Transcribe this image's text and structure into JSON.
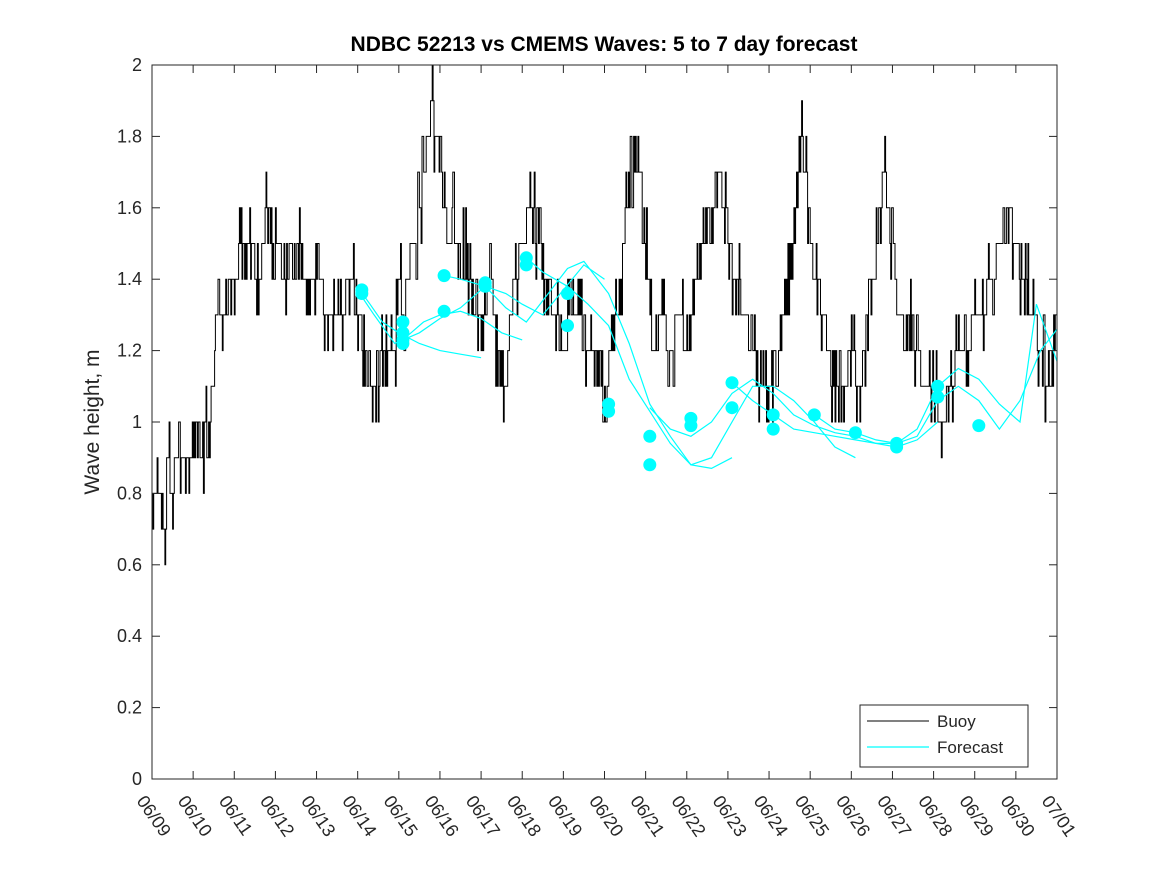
{
  "chart_data": {
    "type": "line",
    "title": "NDBC 52213 vs CMEMS Waves: 5 to 7 day forecast",
    "xlabel": "",
    "ylabel": "Wave height, m",
    "x_tick_labels": [
      "06/09",
      "06/10",
      "06/11",
      "06/12",
      "06/13",
      "06/14",
      "06/15",
      "06/16",
      "06/17",
      "06/18",
      "06/19",
      "06/20",
      "06/21",
      "06/22",
      "06/23",
      "06/24",
      "06/25",
      "06/26",
      "06/27",
      "06/28",
      "06/29",
      "06/30",
      "07/01"
    ],
    "y_tick_labels": [
      "0",
      "0.2",
      "0.4",
      "0.6",
      "0.8",
      "1",
      "1.2",
      "1.4",
      "1.6",
      "1.8",
      "2"
    ],
    "xlim": [
      "06/09",
      "07/01"
    ],
    "ylim": [
      0,
      2
    ],
    "grid": false,
    "legend": {
      "position": "bottom-right",
      "entries": [
        "Buoy",
        "Forecast"
      ]
    },
    "colors": {
      "buoy": "#000000",
      "forecast": "#00ffff"
    },
    "buoy_series": {
      "name": "Buoy",
      "day_index": [
        0.0,
        0.25,
        0.3,
        0.35,
        0.5,
        0.55,
        0.8,
        1.0,
        1.1,
        1.2,
        1.5,
        1.6,
        1.7,
        2.0,
        2.2,
        2.4,
        2.6,
        2.8,
        3.0,
        3.3,
        3.6,
        3.8,
        4.0,
        4.3,
        4.6,
        4.8,
        5.0,
        5.2,
        5.4,
        5.6,
        5.9,
        6.0,
        6.1,
        6.2,
        6.3,
        6.4,
        6.6,
        6.8,
        7.0,
        7.2,
        7.3,
        7.5,
        7.6,
        7.8,
        8.0,
        8.2,
        8.4,
        8.6,
        8.8,
        9.0,
        9.2,
        9.4,
        9.6,
        9.8,
        10.0,
        10.2,
        10.4,
        10.6,
        10.8,
        11.0,
        11.2,
        11.4,
        11.6,
        11.8,
        12.0,
        12.2,
        12.4,
        12.6,
        12.8,
        13.0,
        13.2,
        13.4,
        13.6,
        13.8,
        14.0,
        14.2,
        14.4,
        14.6,
        14.8,
        15.0,
        15.2,
        15.4,
        15.6,
        15.8,
        16.0,
        16.2,
        16.4,
        16.6,
        16.8,
        17.0,
        17.2,
        17.4,
        17.6,
        17.8,
        18.0,
        18.2,
        18.4,
        18.6,
        18.8,
        19.0,
        19.2,
        19.4,
        19.6,
        19.8,
        20.0,
        20.2,
        20.4,
        20.6,
        20.8,
        21.0,
        21.2,
        21.4,
        21.6,
        21.8,
        22.0
      ],
      "values": [
        0.8,
        0.8,
        0.7,
        0.9,
        0.8,
        0.9,
        0.9,
        0.9,
        1.0,
        0.9,
        1.1,
        1.4,
        1.3,
        1.4,
        1.5,
        1.5,
        1.4,
        1.6,
        1.5,
        1.4,
        1.5,
        1.4,
        1.4,
        1.3,
        1.3,
        1.4,
        1.3,
        1.2,
        1.1,
        1.2,
        1.2,
        1.4,
        1.3,
        1.4,
        1.5,
        1.5,
        1.7,
        1.9,
        1.7,
        1.5,
        1.6,
        1.4,
        1.5,
        1.3,
        1.3,
        1.4,
        1.2,
        1.1,
        1.4,
        1.5,
        1.6,
        1.5,
        1.4,
        1.3,
        1.2,
        1.3,
        1.3,
        1.2,
        1.2,
        1.1,
        1.2,
        1.4,
        1.7,
        1.8,
        1.5,
        1.2,
        1.3,
        1.2,
        1.3,
        1.2,
        1.4,
        1.5,
        1.6,
        1.7,
        1.5,
        1.4,
        1.3,
        1.2,
        1.1,
        1.1,
        1.2,
        1.3,
        1.5,
        1.8,
        1.5,
        1.3,
        1.2,
        1.1,
        1.1,
        1.2,
        1.1,
        1.3,
        1.5,
        1.7,
        1.5,
        1.2,
        1.3,
        1.2,
        1.1,
        1.1,
        1.0,
        1.1,
        1.2,
        1.2,
        1.3,
        1.3,
        1.4,
        1.5,
        1.6,
        1.5,
        1.4,
        1.3,
        1.2,
        1.1,
        1.2
      ]
    },
    "forecast_series": [
      {
        "name": "Forecast",
        "day_index": [
          5.05,
          5.3,
          5.6,
          6.0,
          6.5,
          7.0,
          7.5,
          8.0
        ],
        "values": [
          1.37,
          1.33,
          1.28,
          1.25,
          1.22,
          1.2,
          1.19,
          1.18
        ]
      },
      {
        "day_index": [
          5.05,
          5.4,
          5.9,
          6.2,
          6.6,
          7.0,
          7.5,
          8.0,
          8.5,
          9.0
        ],
        "values": [
          1.36,
          1.3,
          1.22,
          1.24,
          1.28,
          1.3,
          1.31,
          1.29,
          1.25,
          1.23
        ]
      },
      {
        "day_index": [
          6.1,
          6.5,
          7.0,
          7.5,
          8.1,
          8.6,
          9.0,
          9.5,
          10.0,
          10.5,
          11.0
        ],
        "values": [
          1.23,
          1.25,
          1.29,
          1.32,
          1.38,
          1.36,
          1.33,
          1.3,
          1.37,
          1.44,
          1.4
        ]
      },
      {
        "day_index": [
          7.1,
          7.5,
          8.1,
          8.6,
          9.1,
          9.5,
          10.1,
          10.5,
          11.1,
          11.6,
          12.1,
          12.6,
          13.1,
          13.6,
          14.1
        ],
        "values": [
          1.41,
          1.4,
          1.38,
          1.32,
          1.28,
          1.34,
          1.43,
          1.45,
          1.36,
          1.22,
          1.05,
          0.96,
          0.88,
          0.87,
          0.9
        ]
      },
      {
        "day_index": [
          9.1,
          9.5,
          10.1,
          10.6,
          11.1,
          11.6,
          12.1,
          12.6,
          13.1,
          13.6,
          14.1,
          14.6,
          15.1,
          15.6,
          16.1,
          16.6,
          17.1
        ],
        "values": [
          1.46,
          1.42,
          1.38,
          1.33,
          1.27,
          1.12,
          1.03,
          0.94,
          0.88,
          0.9,
          1.0,
          1.1,
          1.1,
          1.06,
          1.0,
          0.93,
          0.9
        ]
      },
      {
        "day_index": [
          12.1,
          12.6,
          13.1,
          13.6,
          14.1,
          14.6,
          15.1,
          15.6,
          16.1,
          16.6,
          17.1,
          17.6,
          18.1,
          18.6,
          19.1
        ],
        "values": [
          1.04,
          0.98,
          0.96,
          1.0,
          1.08,
          1.12,
          1.08,
          1.02,
          0.99,
          0.97,
          0.96,
          0.94,
          0.93,
          0.95,
          1.0
        ]
      },
      {
        "day_index": [
          14.1,
          14.6,
          15.1,
          15.6,
          16.1,
          16.6,
          17.1,
          17.6,
          18.1,
          18.6,
          19.1,
          19.6,
          20.1,
          20.6,
          21.1,
          21.6,
          22.0
        ],
        "values": [
          1.11,
          1.06,
          1.02,
          0.98,
          0.97,
          0.96,
          0.95,
          0.94,
          0.94,
          0.96,
          1.06,
          1.1,
          1.06,
          0.98,
          1.06,
          1.2,
          1.26
        ]
      },
      {
        "day_index": [
          16.1,
          16.6,
          17.1,
          17.6,
          18.1,
          18.6,
          19.1,
          19.6,
          20.1,
          20.6,
          21.1,
          21.5,
          22.0
        ],
        "values": [
          1.02,
          0.98,
          0.97,
          0.95,
          0.94,
          0.98,
          1.1,
          1.15,
          1.12,
          1.05,
          1.0,
          1.33,
          1.17
        ]
      }
    ],
    "forecast_markers": {
      "day_index": [
        5.1,
        5.1,
        6.1,
        6.1,
        6.1,
        6.1,
        7.1,
        7.1,
        8.1,
        8.1,
        9.1,
        9.1,
        10.1,
        10.1,
        11.1,
        11.1,
        12.1,
        12.1,
        13.1,
        13.1,
        14.1,
        14.1,
        15.1,
        15.1,
        16.1,
        17.1,
        18.1,
        18.1,
        19.1,
        19.1,
        20.1
      ],
      "values": [
        1.37,
        1.36,
        1.28,
        1.23,
        1.25,
        1.22,
        1.41,
        1.31,
        1.39,
        1.38,
        1.46,
        1.44,
        1.36,
        1.27,
        1.05,
        1.03,
        0.96,
        0.88,
        1.01,
        0.99,
        1.11,
        1.04,
        1.02,
        0.98,
        1.02,
        0.97,
        0.94,
        0.93,
        1.1,
        1.07,
        0.99
      ]
    }
  }
}
